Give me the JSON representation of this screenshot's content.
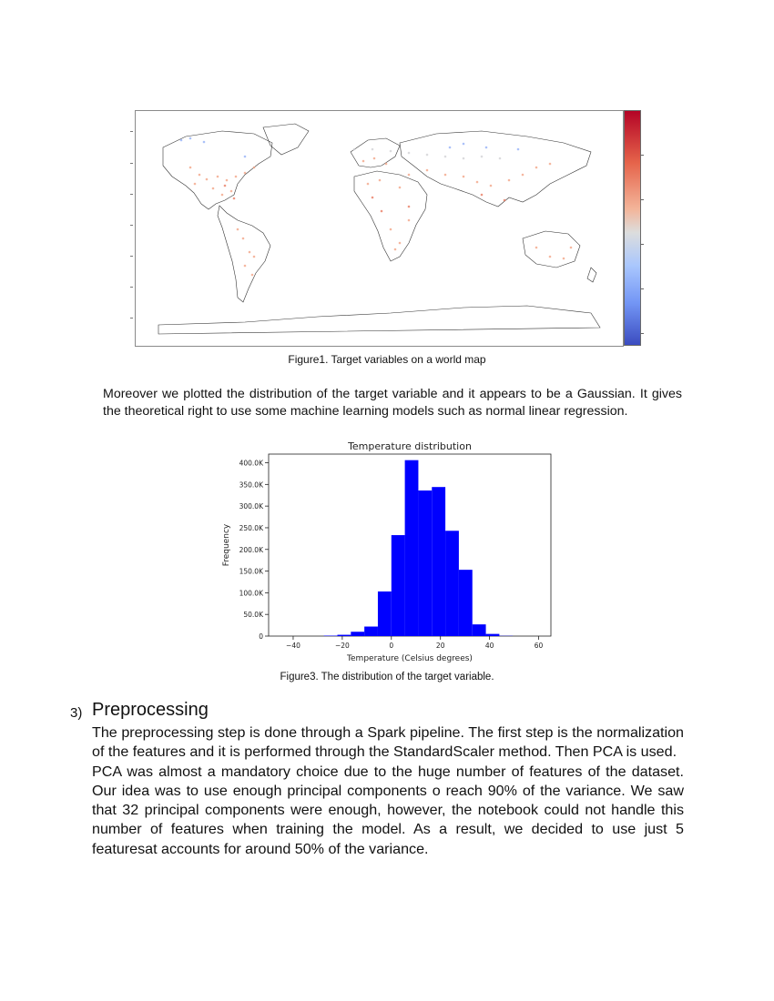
{
  "figure1": {
    "caption": "Figure1. Target variables on a world map"
  },
  "paragraph1": "Moreover we plotted the distribution of the target variable and it appears to be a Gaussian. It gives the theoretical right to use some machine learning models such as normal linear regression.",
  "chart_data": {
    "type": "bar",
    "title": "Temperature distribution",
    "xlabel": "Temperature (Celsius degrees)",
    "ylabel": "Frequency",
    "xlim": [
      -50,
      65
    ],
    "ylim": [
      0,
      420000
    ],
    "x_ticks": [
      -40,
      -20,
      0,
      20,
      40,
      60
    ],
    "y_ticks": [
      0,
      50000,
      100000,
      150000,
      200000,
      250000,
      300000,
      350000,
      400000
    ],
    "y_tick_labels": [
      "0",
      "50.0K",
      "100.0K",
      "150.0K",
      "200.0K",
      "250.0K",
      "300.0K",
      "350.0K",
      "400.0K"
    ],
    "bin_width": 5.5,
    "bins": [
      {
        "start": -27.5,
        "value": 1000
      },
      {
        "start": -22.0,
        "value": 3000
      },
      {
        "start": -16.5,
        "value": 10000
      },
      {
        "start": -11.0,
        "value": 22000
      },
      {
        "start": -5.5,
        "value": 103000
      },
      {
        "start": 0.0,
        "value": 233000
      },
      {
        "start": 5.5,
        "value": 406000
      },
      {
        "start": 11.0,
        "value": 336000
      },
      {
        "start": 16.5,
        "value": 344000
      },
      {
        "start": 22.0,
        "value": 243000
      },
      {
        "start": 27.5,
        "value": 153000
      },
      {
        "start": 33.0,
        "value": 27000
      },
      {
        "start": 38.5,
        "value": 5000
      },
      {
        "start": 44.0,
        "value": 500
      }
    ],
    "color": "#0000ff"
  },
  "figure3": {
    "caption": "Figure3. The distribution of the target variable."
  },
  "section": {
    "number": "3)",
    "title": "Preprocessing",
    "p1": "The preprocessing step is done through a Spark pipeline. The first step is the normalization of the features and it is performed through the StandardScaler method. Then PCA is used.",
    "p2": "PCA was almost a mandatory choice due to the huge number of features of the dataset. Our idea was to use enough principal components o reach 90% of the variance. We saw that 32 principal components  were enough, however, the notebook could not handle this number of features when training the model. As a result, we decided to use just 5 featuresat accounts for around 50% of the variance."
  }
}
